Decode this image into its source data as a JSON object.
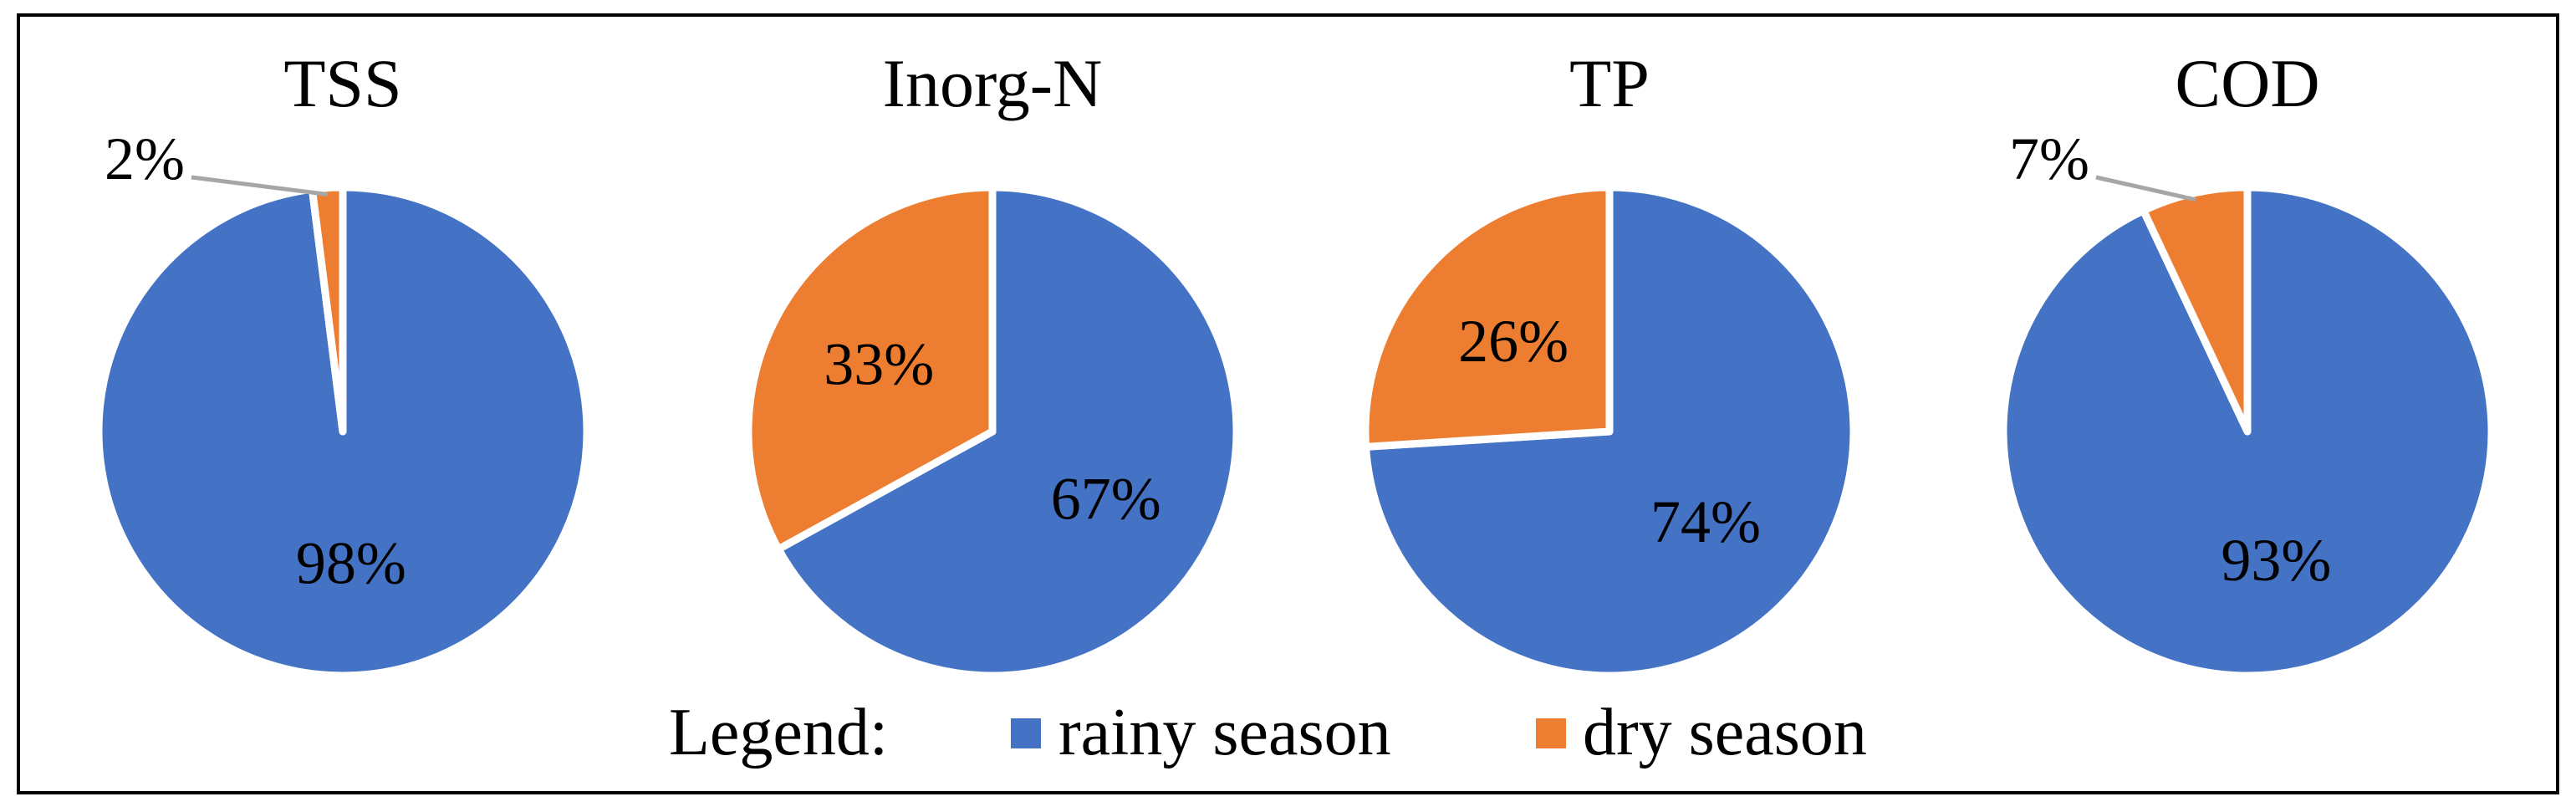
{
  "chart_data": {
    "type": "pie",
    "legend": {
      "title": "Legend:",
      "position": "bottom",
      "entries": [
        {
          "name": "rainy season",
          "color": "#4472C4"
        },
        {
          "name": "dry season",
          "color": "#ED7D31"
        }
      ]
    },
    "charts": [
      {
        "title": "TSS",
        "slices": [
          {
            "series": "rainy season",
            "value": 98,
            "label": "98%"
          },
          {
            "series": "dry season",
            "value": 2,
            "label": "2%",
            "label_outside": true
          }
        ]
      },
      {
        "title": "Inorg-N",
        "slices": [
          {
            "series": "rainy season",
            "value": 67,
            "label": "67%"
          },
          {
            "series": "dry season",
            "value": 33,
            "label": "33%"
          }
        ]
      },
      {
        "title": "TP",
        "slices": [
          {
            "series": "rainy season",
            "value": 74,
            "label": "74%"
          },
          {
            "series": "dry season",
            "value": 26,
            "label": "26%"
          }
        ]
      },
      {
        "title": "COD",
        "slices": [
          {
            "series": "rainy season",
            "value": 93,
            "label": "93%"
          },
          {
            "series": "dry season",
            "value": 7,
            "label": "7%",
            "label_outside": true
          }
        ]
      }
    ]
  }
}
